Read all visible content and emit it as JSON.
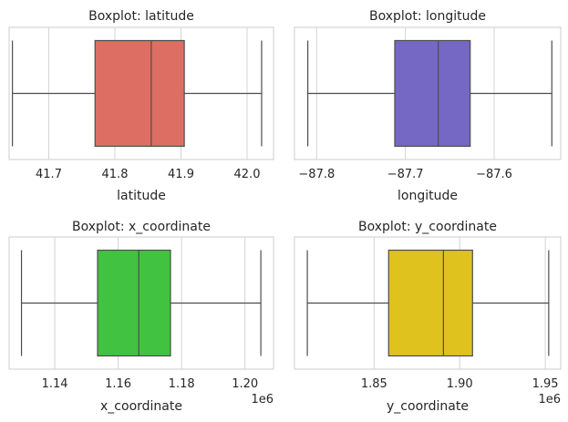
{
  "chart_data": [
    {
      "type": "boxplot",
      "title": "Boxplot: latitude",
      "xlabel": "latitude",
      "offset_label": "",
      "color": "#dd6e63",
      "xlim": [
        41.64,
        42.04
      ],
      "ticks": [
        41.7,
        41.8,
        41.9,
        42.0
      ],
      "tick_labels": [
        "41.7",
        "41.8",
        "41.9",
        "42.0"
      ],
      "stats": {
        "whislo": 41.645,
        "q1": 41.77,
        "med": 41.855,
        "q3": 41.905,
        "whishi": 42.022
      },
      "grid": true
    },
    {
      "type": "boxplot",
      "title": "Boxplot: longitude",
      "xlabel": "longitude",
      "offset_label": "",
      "color": "#7568c4",
      "xlim": [
        -87.825,
        -87.525
      ],
      "ticks": [
        -87.8,
        -87.7,
        -87.6
      ],
      "tick_labels": [
        "−87.8",
        "−87.7",
        "−87.6"
      ],
      "stats": {
        "whislo": -87.81,
        "q1": -87.712,
        "med": -87.663,
        "q3": -87.627,
        "whishi": -87.535
      },
      "grid": true
    },
    {
      "type": "boxplot",
      "title": "Boxplot: x_coordinate",
      "xlabel": "x_coordinate",
      "offset_label": "1e6",
      "color": "#42c241",
      "xlim": [
        1.1256,
        1.209
      ],
      "ticks": [
        1.14,
        1.16,
        1.18,
        1.2
      ],
      "tick_labels": [
        "1.14",
        "1.16",
        "1.18",
        "1.20"
      ],
      "stats": {
        "whislo": 1.1295,
        "q1": 1.1535,
        "med": 1.1665,
        "q3": 1.1765,
        "whishi": 1.205
      },
      "grid": true
    },
    {
      "type": "boxplot",
      "title": "Boxplot: y_coordinate",
      "xlabel": "y_coordinate",
      "offset_label": "1e6",
      "color": "#e0c21e",
      "xlim": [
        1.8035,
        1.959
      ],
      "ticks": [
        1.85,
        1.9,
        1.95
      ],
      "tick_labels": [
        "1.85",
        "1.90",
        "1.95"
      ],
      "stats": {
        "whislo": 1.811,
        "q1": 1.8585,
        "med": 1.8905,
        "q3": 1.9075,
        "whishi": 1.952
      },
      "grid": true
    }
  ]
}
